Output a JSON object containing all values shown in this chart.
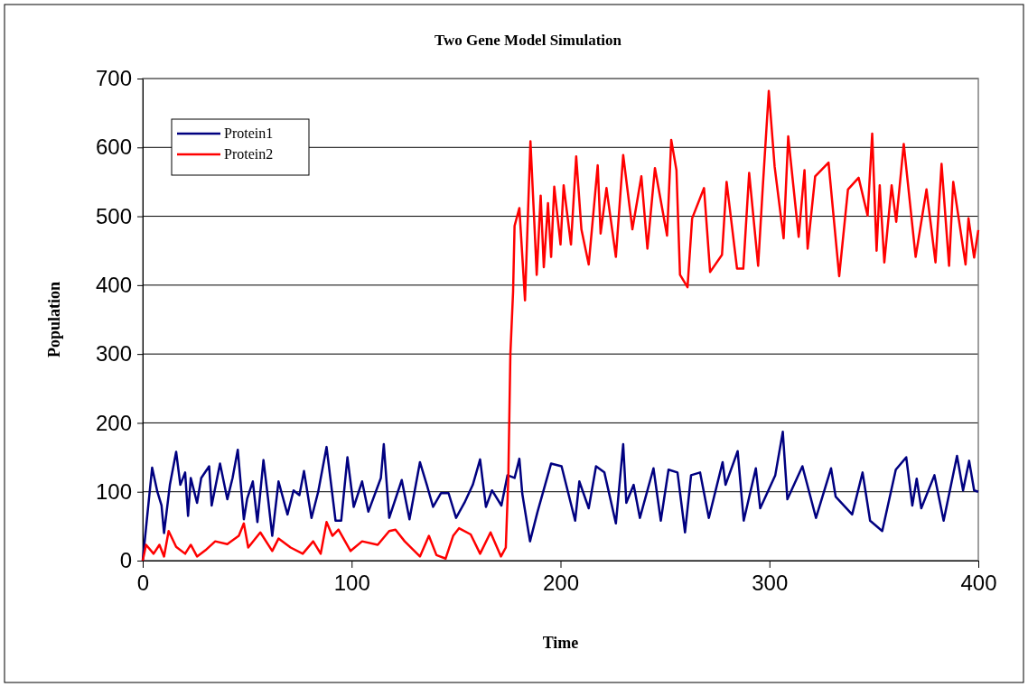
{
  "chart_data": {
    "type": "line",
    "title": "Two Gene Model Simulation",
    "xlabel": "Time",
    "ylabel": "Population",
    "xlim": [
      0,
      400
    ],
    "xticks": [
      0,
      100,
      200,
      300,
      400
    ],
    "ylim": [
      0,
      700
    ],
    "yticks": [
      0,
      100,
      200,
      300,
      400,
      500,
      600,
      700
    ],
    "grid": "y",
    "legend": "top left",
    "marker": "none",
    "line_style": "solid",
    "series": [
      {
        "name": "Protein1",
        "color": "#000080",
        "x": [
          0,
          2,
          4.5,
          7,
          9,
          10.2,
          13,
          16,
          18,
          20.3,
          21.7,
          23,
          26,
          28,
          31.8,
          33,
          37,
          40.5,
          43,
          45.5,
          48.4,
          50,
          52.7,
          54.9,
          57.8,
          60,
          62,
          65,
          69.3,
          72.2,
          75,
          77.2,
          80.8,
          84,
          88,
          92.3,
          95,
          98,
          101,
          105,
          108,
          114,
          115.4,
          118,
          124,
          127.7,
          132.7,
          136,
          139,
          142.8,
          146.4,
          150,
          154,
          158,
          161.5,
          164.3,
          167.2,
          171.7,
          174.6,
          178,
          180.3,
          181.7,
          185.4,
          189,
          195.5,
          200.5,
          207,
          209,
          213.5,
          217,
          221,
          226.5,
          230,
          231.5,
          235,
          238,
          244.5,
          248,
          251.7,
          256,
          259.6,
          262.5,
          266.8,
          271,
          277.6,
          279,
          284.8,
          287.7,
          293.5,
          295.6,
          302.8,
          306.4,
          308.6,
          315.8,
          322.3,
          329.5,
          331.7,
          339.6,
          344.6,
          348.2,
          354,
          360.5,
          365.5,
          368.4,
          370.5,
          372.7,
          379,
          383.4,
          389.8,
          392.7,
          395.6,
          398,
          400
        ],
        "values": [
          0,
          60,
          135,
          100,
          80,
          40,
          110,
          158,
          110,
          128,
          65,
          120,
          84,
          120,
          137,
          80,
          141,
          89,
          120,
          161,
          60,
          90,
          115,
          56,
          146,
          90,
          36,
          115,
          67,
          102,
          95,
          130,
          62,
          100,
          165,
          58,
          58,
          150,
          78,
          115,
          71,
          120,
          169,
          62,
          117,
          60,
          143,
          110,
          78,
          98,
          98,
          62,
          84,
          110,
          147,
          78,
          102,
          80,
          124,
          120,
          148,
          97,
          28,
          71,
          141,
          137,
          58,
          115,
          76,
          137,
          128,
          54,
          169,
          84,
          110,
          62,
          134,
          58,
          132,
          128,
          41,
          124,
          128,
          62,
          143,
          110,
          159,
          58,
          134,
          76,
          124,
          187,
          89,
          137,
          62,
          134,
          93,
          67,
          128,
          58,
          43,
          132,
          150,
          80,
          119,
          76,
          124,
          58,
          152,
          102,
          145,
          102,
          100
        ]
      },
      {
        "name": "Protein2",
        "color": "#ff0000",
        "x": [
          0,
          1.6,
          5.2,
          8,
          10.2,
          12.4,
          16,
          20.3,
          23,
          26,
          30,
          34.7,
          40.5,
          46,
          48.4,
          50.5,
          56.3,
          62,
          65,
          70.8,
          76.6,
          81.6,
          85.2,
          88,
          90.8,
          93.7,
          99.5,
          105,
          112.5,
          118,
          121,
          125.4,
          132.7,
          137,
          140.6,
          145,
          148.6,
          151.4,
          157,
          161.5,
          166.5,
          171.5,
          173.8,
          175,
          176,
          177.3,
          178,
          180.3,
          183,
          185.6,
          187.7,
          188.6,
          190.5,
          192,
          194,
          195.5,
          197,
          200,
          201.5,
          205,
          207.5,
          210,
          213.5,
          217.8,
          219.2,
          222,
          226.5,
          230,
          234.4,
          238.7,
          241.6,
          245.2,
          251,
          253,
          255.5,
          257.2,
          260.8,
          263,
          268.7,
          271.6,
          277.3,
          279.5,
          284.5,
          287.5,
          290.3,
          294.6,
          296.8,
          299.7,
          302.5,
          306.8,
          309,
          314,
          316.8,
          318.3,
          321.9,
          328.3,
          333.4,
          337.6,
          342.7,
          347,
          349.2,
          351.3,
          352.8,
          355,
          358.5,
          360.7,
          364.3,
          370,
          375.2,
          379.5,
          382.4,
          386,
          388,
          393.9,
          395.3,
          398,
          400
        ],
        "values": [
          0,
          23,
          10,
          23,
          6,
          43,
          20,
          10,
          23,
          6,
          15,
          28,
          24,
          36,
          54,
          19,
          41,
          14,
          32,
          19,
          10,
          28,
          10,
          56,
          36,
          45,
          14,
          28,
          23,
          43,
          45,
          28,
          6,
          36,
          8,
          3,
          36,
          47,
          38,
          10,
          41,
          6,
          19,
          119,
          300,
          391,
          486,
          512,
          378,
          609,
          475,
          415,
          530,
          426,
          519,
          441,
          543,
          459,
          545,
          459,
          587,
          481,
          430,
          574,
          475,
          541,
          441,
          589,
          481,
          558,
          453,
          570,
          472,
          611,
          567,
          415,
          397,
          497,
          541,
          419,
          444,
          550,
          424,
          424,
          563,
          428,
          541,
          682,
          572,
          468,
          616,
          470,
          567,
          453,
          558,
          578,
          413,
          539,
          556,
          501,
          620,
          450,
          545,
          433,
          545,
          492,
          605,
          441,
          539,
          433,
          576,
          428,
          550,
          430,
          497,
          440,
          480
        ]
      }
    ]
  }
}
